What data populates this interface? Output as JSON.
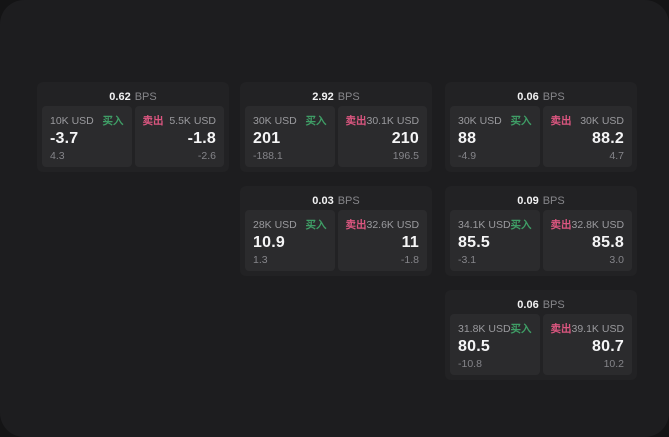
{
  "theme": {
    "outer_bg": "#141415",
    "panel_bg": "#1d1d1f",
    "card_bg": "#222224",
    "pane_bg": "#2b2b2d",
    "buy_color": "#3f9e66",
    "sell_color": "#dc5680",
    "text_primary": "#f5f5f6",
    "text_muted": "#85858a"
  },
  "labels": {
    "bps_suffix": "BPS",
    "buy": "买入",
    "sell": "卖出"
  },
  "cards": [
    {
      "bps": "0.62",
      "buy": {
        "amount": "10K USD",
        "value": "-3.7",
        "delta": "4.3"
      },
      "sell": {
        "amount": "5.5K USD",
        "value": "-1.8",
        "delta": "-2.6"
      }
    },
    {
      "bps": "2.92",
      "buy": {
        "amount": "30K USD",
        "value": "201",
        "delta": "-188.1"
      },
      "sell": {
        "amount": "30.1K USD",
        "value": "210",
        "delta": "196.5"
      }
    },
    {
      "bps": "0.06",
      "buy": {
        "amount": "30K USD",
        "value": "88",
        "delta": "-4.9"
      },
      "sell": {
        "amount": "30K USD",
        "value": "88.2",
        "delta": "4.7"
      }
    },
    {
      "bps": "0.03",
      "buy": {
        "amount": "28K USD",
        "value": "10.9",
        "delta": "1.3"
      },
      "sell": {
        "amount": "32.6K USD",
        "value": "11",
        "delta": "-1.8"
      }
    },
    {
      "bps": "0.09",
      "buy": {
        "amount": "34.1K USD",
        "value": "85.5",
        "delta": "-3.1"
      },
      "sell": {
        "amount": "32.8K USD",
        "value": "85.8",
        "delta": "3.0"
      }
    },
    {
      "bps": "0.06",
      "buy": {
        "amount": "31.8K USD",
        "value": "80.5",
        "delta": "-10.8"
      },
      "sell": {
        "amount": "39.1K USD",
        "value": "80.7",
        "delta": "10.2"
      }
    }
  ]
}
